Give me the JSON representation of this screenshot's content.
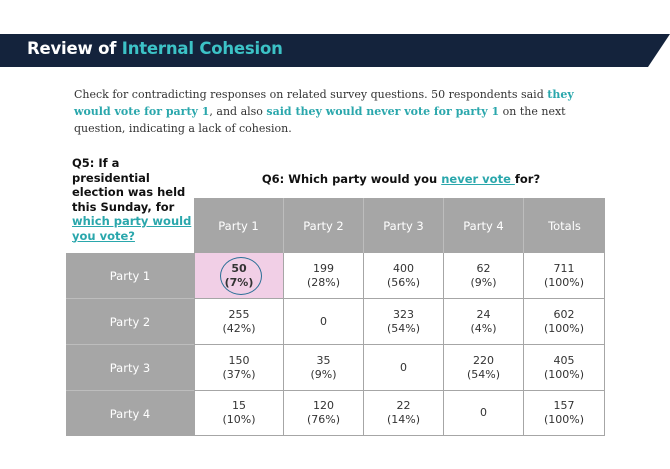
{
  "banner": {
    "title_part1": "Review of ",
    "title_part2": "Internal Cohesion",
    "accent_color": "#3cc2c6",
    "background": "#14233c"
  },
  "intro": {
    "text1": "Check for contradicting responses on related survey questions. 50 respondents said ",
    "highlight1": "they would vote for party 1",
    "text2": ", and also ",
    "highlight2": "said they would never vote for party 1",
    "text3": " on the next question, indicating a lack of cohesion."
  },
  "q5": {
    "text": "Q5: If a presidential election was held this Sunday, for ",
    "underlined": "which party would you vote?"
  },
  "q6": {
    "text_before": "Q6: Which party would you ",
    "underlined": "never vote ",
    "text_after": "for?"
  },
  "table": {
    "columns": [
      "Party 1",
      "Party 2",
      "Party  3",
      "Party 4",
      "Totals"
    ],
    "rows": [
      {
        "label": "Party 1",
        "cells": [
          {
            "v": "50",
            "p": "(7%)"
          },
          {
            "v": "199",
            "p": "(28%)"
          },
          {
            "v": "400",
            "p": "(56%)"
          },
          {
            "v": "62",
            "p": "(9%)"
          },
          {
            "v": "711",
            "p": "(100%)"
          }
        ]
      },
      {
        "label": "Party 2",
        "cells": [
          {
            "v": "255",
            "p": "(42%)"
          },
          {
            "v": "0",
            "p": ""
          },
          {
            "v": "323",
            "p": "(54%)"
          },
          {
            "v": "24",
            "p": "(4%)"
          },
          {
            "v": "602",
            "p": "(100%)"
          }
        ]
      },
      {
        "label": "Party 3",
        "cells": [
          {
            "v": "150",
            "p": "(37%)"
          },
          {
            "v": "35",
            "p": "(9%)"
          },
          {
            "v": "0",
            "p": ""
          },
          {
            "v": "220",
            "p": "(54%)"
          },
          {
            "v": "405",
            "p": "(100%)"
          }
        ]
      },
      {
        "label": "Party 4",
        "cells": [
          {
            "v": "15",
            "p": "(10%)"
          },
          {
            "v": "120",
            "p": "(76%)"
          },
          {
            "v": "22",
            "p": "(14%)"
          },
          {
            "v": "0",
            "p": ""
          },
          {
            "v": "157",
            "p": "(100%)"
          }
        ]
      }
    ],
    "highlight_cell_color": "#f1cfe6",
    "header_color": "#a6a6a6"
  }
}
